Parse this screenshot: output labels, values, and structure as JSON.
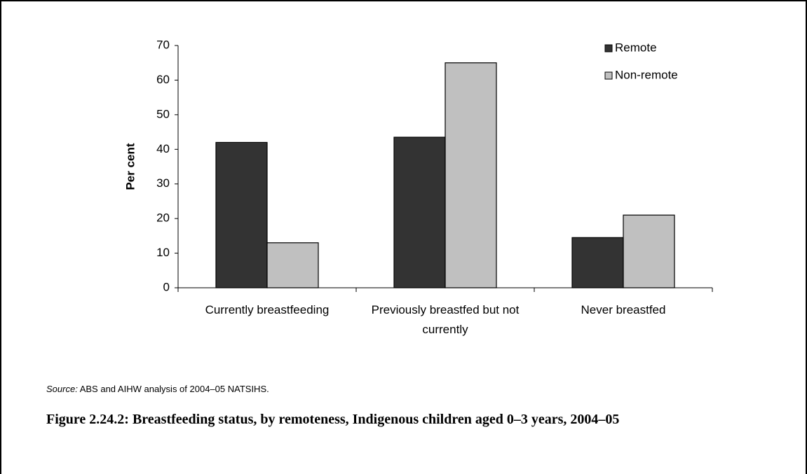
{
  "chart_data": {
    "type": "bar",
    "y_label": "Per cent",
    "categories": [
      "Currently breastfeeding",
      "Previously breastfed but not currently",
      "Never breastfed"
    ],
    "series": [
      {
        "name": "Remote",
        "color": "#333333",
        "values": [
          42,
          43.5,
          14.5
        ]
      },
      {
        "name": "Non-remote",
        "color": "#c0c0c0",
        "values": [
          13,
          65,
          21
        ]
      }
    ],
    "ylim": [
      0,
      70
    ],
    "yticks": [
      0,
      10,
      20,
      30,
      40,
      50,
      60,
      70
    ],
    "legend": "top-right",
    "source_label": "Source:",
    "source": "ABS and AIHW analysis of 2004–05 NATSIHS.",
    "caption": "Figure 2.24.2: Breastfeeding status, by remoteness, Indigenous children aged 0–3 years, 2004–05"
  }
}
